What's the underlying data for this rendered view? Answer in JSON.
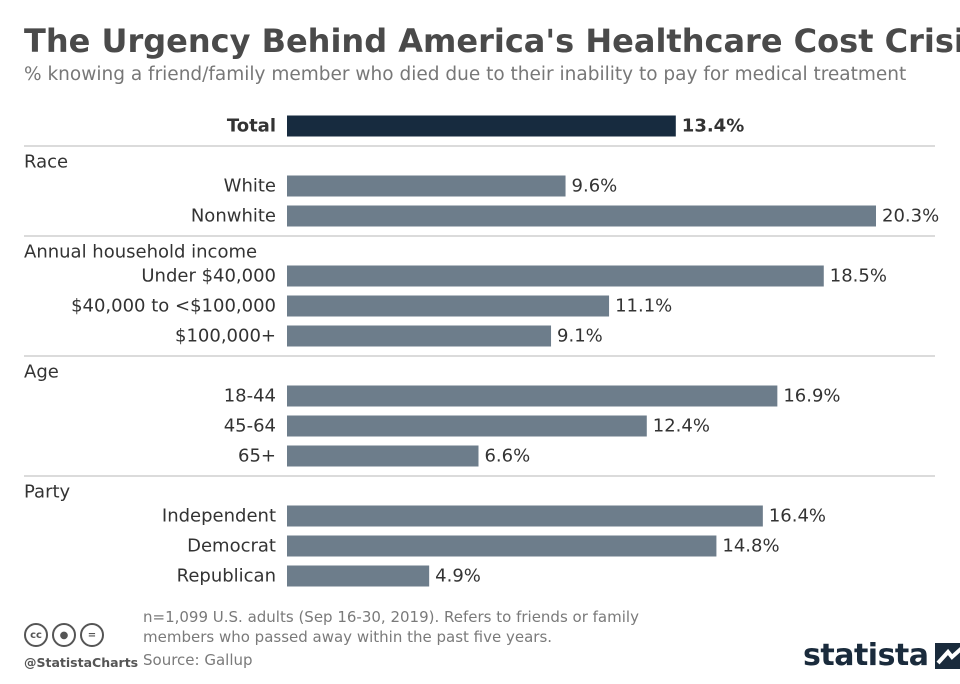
{
  "title": "The Urgency Behind America's Healthcare Cost Crisis",
  "subtitle": "% knowing a friend/family member who died due to their inability to pay for medical treatment",
  "chart_data": {
    "type": "bar",
    "orientation": "horizontal",
    "unit": "%",
    "xlim": [
      0,
      20.3
    ],
    "colors": {
      "total": "#172b3f",
      "default": "#6d7d8b",
      "separator": "#cfcfcf",
      "label": "#333333"
    },
    "total": {
      "label": "Total",
      "value": 13.4,
      "value_label": "13.4%"
    },
    "groups": [
      {
        "name": "Race",
        "items": [
          {
            "label": "White",
            "value": 9.6,
            "value_label": "9.6%"
          },
          {
            "label": "Nonwhite",
            "value": 20.3,
            "value_label": "20.3%"
          }
        ]
      },
      {
        "name": "Annual household income",
        "items": [
          {
            "label": "Under $40,000",
            "value": 18.5,
            "value_label": "18.5%"
          },
          {
            "label": "$40,000 to <$100,000",
            "value": 11.1,
            "value_label": "11.1%"
          },
          {
            "label": "$100,000+",
            "value": 9.1,
            "value_label": "9.1%"
          }
        ]
      },
      {
        "name": "Age",
        "items": [
          {
            "label": "18-44",
            "value": 16.9,
            "value_label": "16.9%"
          },
          {
            "label": "45-64",
            "value": 12.4,
            "value_label": "12.4%"
          },
          {
            "label": "65+",
            "value": 6.6,
            "value_label": "6.6%"
          }
        ]
      },
      {
        "name": "Party",
        "items": [
          {
            "label": "Independent",
            "value": 16.4,
            "value_label": "16.4%"
          },
          {
            "label": "Democrat",
            "value": 14.8,
            "value_label": "14.8%"
          },
          {
            "label": "Republican",
            "value": 4.9,
            "value_label": "4.9%"
          }
        ]
      }
    ]
  },
  "footer": {
    "note": "n=1,099 U.S. adults (Sep 16-30, 2019). Refers to friends or family members who passed away within the past five years.",
    "source": "Source: Gallup",
    "handle": "@StatistaCharts",
    "brand": "statista",
    "license_icons": [
      {
        "name": "cc-icon",
        "glyph": "cc"
      },
      {
        "name": "attribution-icon",
        "glyph": "●"
      },
      {
        "name": "no-derivatives-icon",
        "glyph": "="
      }
    ]
  }
}
